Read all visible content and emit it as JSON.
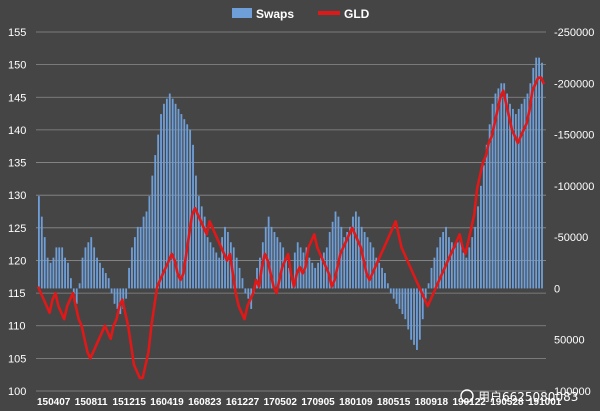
{
  "chart_data": {
    "type": "bar+line",
    "title": "",
    "legend": {
      "position": "top-center",
      "entries": [
        "Swaps",
        "GLD"
      ]
    },
    "colors": {
      "background": "#454545",
      "Swaps": "#6f9fd8",
      "GLD": "#e01818",
      "grid": "#8c8c8c",
      "text": "#ffffff"
    },
    "grid": true,
    "y_left": {
      "min": 100,
      "max": 155,
      "step": 5,
      "ticks": [
        "100",
        "105",
        "110",
        "115",
        "120",
        "125",
        "130",
        "135",
        "140",
        "145",
        "150",
        "155"
      ]
    },
    "y_right": {
      "min": -250000,
      "max": 100000,
      "step": 50000,
      "reversed": true,
      "ticks": [
        "-250000",
        "-200000",
        "-150000",
        "-100000",
        "-50000",
        "0",
        "50000",
        "100000"
      ]
    },
    "x_tick_labels": [
      "150407",
      "150811",
      "151215",
      "160419",
      "160823",
      "161227",
      "170502",
      "170905",
      "180109",
      "180515",
      "180918",
      "190122",
      "190528",
      "191001"
    ],
    "series": [
      {
        "name": "Swaps",
        "axis": "right",
        "values": [
          -90000,
          -70000,
          -50000,
          -30000,
          -25000,
          -30000,
          -40000,
          -40000,
          -40000,
          -30000,
          -25000,
          -10000,
          5000,
          15000,
          -5000,
          -30000,
          -40000,
          -45000,
          -50000,
          -40000,
          -30000,
          -25000,
          -20000,
          -15000,
          -10000,
          5000,
          15000,
          20000,
          25000,
          20000,
          10000,
          -20000,
          -40000,
          -50000,
          -60000,
          -60000,
          -70000,
          -75000,
          -90000,
          -110000,
          -130000,
          -150000,
          -170000,
          -180000,
          -185000,
          -190000,
          -185000,
          -180000,
          -175000,
          -170000,
          -165000,
          -160000,
          -155000,
          -140000,
          -110000,
          -90000,
          -80000,
          -70000,
          -50000,
          -45000,
          -40000,
          -35000,
          -30000,
          -50000,
          -60000,
          -55000,
          -45000,
          -40000,
          -30000,
          -20000,
          -10000,
          5000,
          10000,
          20000,
          5000,
          -20000,
          -30000,
          -45000,
          -60000,
          -70000,
          -60000,
          -55000,
          -50000,
          -45000,
          -40000,
          -30000,
          -20000,
          -10000,
          -35000,
          -45000,
          -40000,
          -35000,
          -40000,
          -30000,
          -25000,
          -20000,
          -25000,
          -30000,
          -35000,
          -40000,
          -55000,
          -65000,
          -75000,
          -70000,
          -60000,
          -50000,
          -55000,
          -60000,
          -70000,
          -75000,
          -70000,
          -60000,
          -55000,
          -50000,
          -45000,
          -40000,
          -30000,
          -25000,
          -20000,
          -15000,
          -5000,
          5000,
          10000,
          15000,
          20000,
          25000,
          30000,
          40000,
          50000,
          55000,
          60000,
          50000,
          30000,
          10000,
          -5000,
          -20000,
          -30000,
          -40000,
          -50000,
          -55000,
          -60000,
          -50000,
          -45000,
          -40000,
          -45000,
          -50000,
          -35000,
          -30000,
          -40000,
          -50000,
          -60000,
          -80000,
          -100000,
          -120000,
          -140000,
          -160000,
          -180000,
          -190000,
          -195000,
          -200000,
          -200000,
          -190000,
          -180000,
          -175000,
          -170000,
          -175000,
          -180000,
          -185000,
          -190000,
          -200000,
          -215000,
          -225000,
          -225000,
          -220000
        ]
      },
      {
        "name": "GLD",
        "axis": "left",
        "values": [
          116,
          115,
          114,
          113,
          112,
          114,
          115,
          113,
          112,
          111,
          113,
          114,
          115,
          113,
          111,
          110,
          108,
          106,
          105,
          106,
          107,
          108,
          109,
          110,
          109,
          108,
          110,
          111,
          113,
          114,
          112,
          110,
          107,
          104,
          103,
          102,
          102,
          104,
          106,
          110,
          113,
          116,
          117,
          118,
          119,
          120,
          121,
          120,
          118,
          117,
          118,
          121,
          124,
          127,
          128,
          127,
          126,
          125,
          124,
          126,
          125,
          124,
          123,
          122,
          121,
          120,
          121,
          118,
          115,
          113,
          112,
          111,
          113,
          114,
          115,
          117,
          116,
          119,
          121,
          120,
          118,
          116,
          115,
          117,
          119,
          120,
          121,
          118,
          116,
          118,
          119,
          118,
          119,
          122,
          123,
          124,
          122,
          121,
          120,
          119,
          118,
          116,
          117,
          119,
          121,
          122,
          123,
          124,
          125,
          124,
          123,
          122,
          120,
          118,
          117,
          118,
          119,
          120,
          121,
          122,
          123,
          124,
          125,
          126,
          124,
          122,
          121,
          120,
          119,
          118,
          117,
          116,
          115,
          114,
          113,
          114,
          115,
          116,
          117,
          118,
          119,
          120,
          121,
          122,
          123,
          124,
          122,
          121,
          123,
          125,
          127,
          131,
          133,
          135,
          136,
          138,
          139,
          141,
          143,
          145,
          146,
          144,
          142,
          140,
          139,
          138,
          139,
          140,
          141,
          143,
          146,
          147,
          148,
          148,
          147
        ]
      }
    ]
  },
  "watermark": "用户6625080083"
}
